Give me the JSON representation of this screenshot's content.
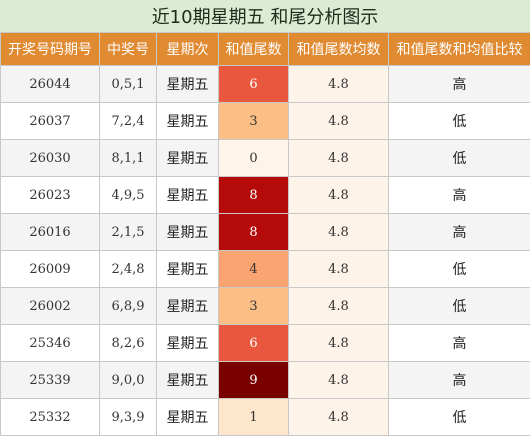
{
  "title": "近10期星期五 和尾分析图示",
  "columns": [
    "开奖号码期号",
    "中奖号",
    "星期次",
    "和值尾数",
    "和值尾数均数",
    "和值尾数和均值比较"
  ],
  "rows": [
    {
      "issue": "26044",
      "numbers": "0,5,1",
      "weekday": "星期五",
      "tail": "6",
      "avg": "4.8",
      "compare": "高",
      "tail_color": "#e9573f",
      "row_bg": "#f4f4f4"
    },
    {
      "issue": "26037",
      "numbers": "7,2,4",
      "weekday": "星期五",
      "tail": "3",
      "avg": "4.8",
      "compare": "低",
      "tail_color": "#fbbf85",
      "row_bg": "#ffffff"
    },
    {
      "issue": "26030",
      "numbers": "8,1,1",
      "weekday": "星期五",
      "tail": "0",
      "avg": "4.8",
      "compare": "低",
      "tail_color": "#fff4ea",
      "row_bg": "#f4f4f4"
    },
    {
      "issue": "26023",
      "numbers": "4,9,5",
      "weekday": "星期五",
      "tail": "8",
      "avg": "4.8",
      "compare": "高",
      "tail_color": "#b40a0a",
      "row_bg": "#ffffff"
    },
    {
      "issue": "26016",
      "numbers": "2,1,5",
      "weekday": "星期五",
      "tail": "8",
      "avg": "4.8",
      "compare": "高",
      "tail_color": "#b40a0a",
      "row_bg": "#f4f4f4"
    },
    {
      "issue": "26009",
      "numbers": "2,4,8",
      "weekday": "星期五",
      "tail": "4",
      "avg": "4.8",
      "compare": "低",
      "tail_color": "#f9a471",
      "row_bg": "#ffffff"
    },
    {
      "issue": "26002",
      "numbers": "6,8,9",
      "weekday": "星期五",
      "tail": "3",
      "avg": "4.8",
      "compare": "低",
      "tail_color": "#fbbf85",
      "row_bg": "#f4f4f4"
    },
    {
      "issue": "25346",
      "numbers": "8,2,6",
      "weekday": "星期五",
      "tail": "6",
      "avg": "4.8",
      "compare": "高",
      "tail_color": "#e9573f",
      "row_bg": "#ffffff"
    },
    {
      "issue": "25339",
      "numbers": "9,0,0",
      "weekday": "星期五",
      "tail": "9",
      "avg": "4.8",
      "compare": "高",
      "tail_color": "#7a0000",
      "row_bg": "#f4f4f4"
    },
    {
      "issue": "25332",
      "numbers": "9,3,9",
      "weekday": "星期五",
      "tail": "1",
      "avg": "4.8",
      "compare": "低",
      "tail_color": "#fde6cc",
      "row_bg": "#ffffff"
    }
  ]
}
